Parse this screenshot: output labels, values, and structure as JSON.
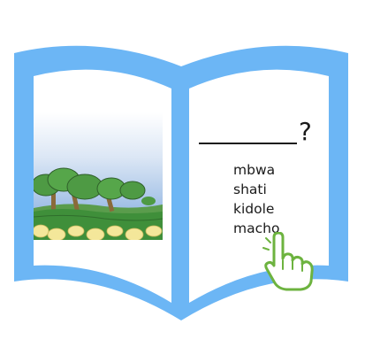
{
  "question": {
    "mark": "?"
  },
  "options": [
    {
      "label": "mbwa"
    },
    {
      "label": "shati"
    },
    {
      "label": "kidole"
    },
    {
      "label": "macho"
    }
  ],
  "icons": {
    "book": "open-book-icon",
    "hand": "pointing-hand-icon",
    "picture": "landscape-trees-illustration"
  },
  "colors": {
    "book_frame": "#6cb6f5",
    "page": "#ffffff",
    "sky_top": "#ffffff",
    "sky_bottom": "#7aa6dc",
    "tree_green": "#4e9a44",
    "grass_green": "#3f8f3a",
    "flowers": "#f4e79a",
    "hand_outline": "#6db33f",
    "hand_fill": "#ffffff"
  }
}
